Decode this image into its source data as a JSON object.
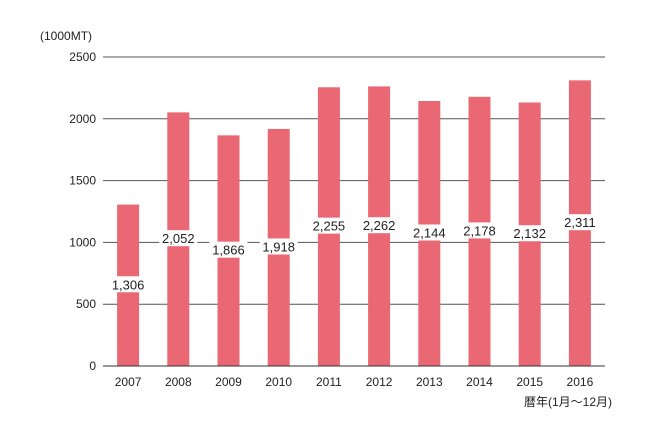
{
  "chart_data": {
    "type": "bar",
    "unit_label": "(1000MT)",
    "xlabel": "暦年(1月〜12月)",
    "ylabel": "",
    "categories": [
      "2007",
      "2008",
      "2009",
      "2010",
      "2011",
      "2012",
      "2013",
      "2014",
      "2015",
      "2016"
    ],
    "values": [
      1306,
      2052,
      1866,
      1918,
      2255,
      2262,
      2144,
      2178,
      2132,
      2311
    ],
    "data_labels": [
      "1,306",
      "2,052",
      "1,866",
      "1,918",
      "2,255",
      "2,262",
      "2,144",
      "2,178",
      "2,132",
      "2,311"
    ],
    "ylim": [
      0,
      2500
    ],
    "yticks": [
      0,
      500,
      1000,
      1500,
      2000,
      2500
    ],
    "ytick_labels": [
      "0",
      "500",
      "1000",
      "1500",
      "2000",
      "2500"
    ],
    "grid": true,
    "bar_color": "#ea6873",
    "label_bg_color": "#ffffff"
  }
}
